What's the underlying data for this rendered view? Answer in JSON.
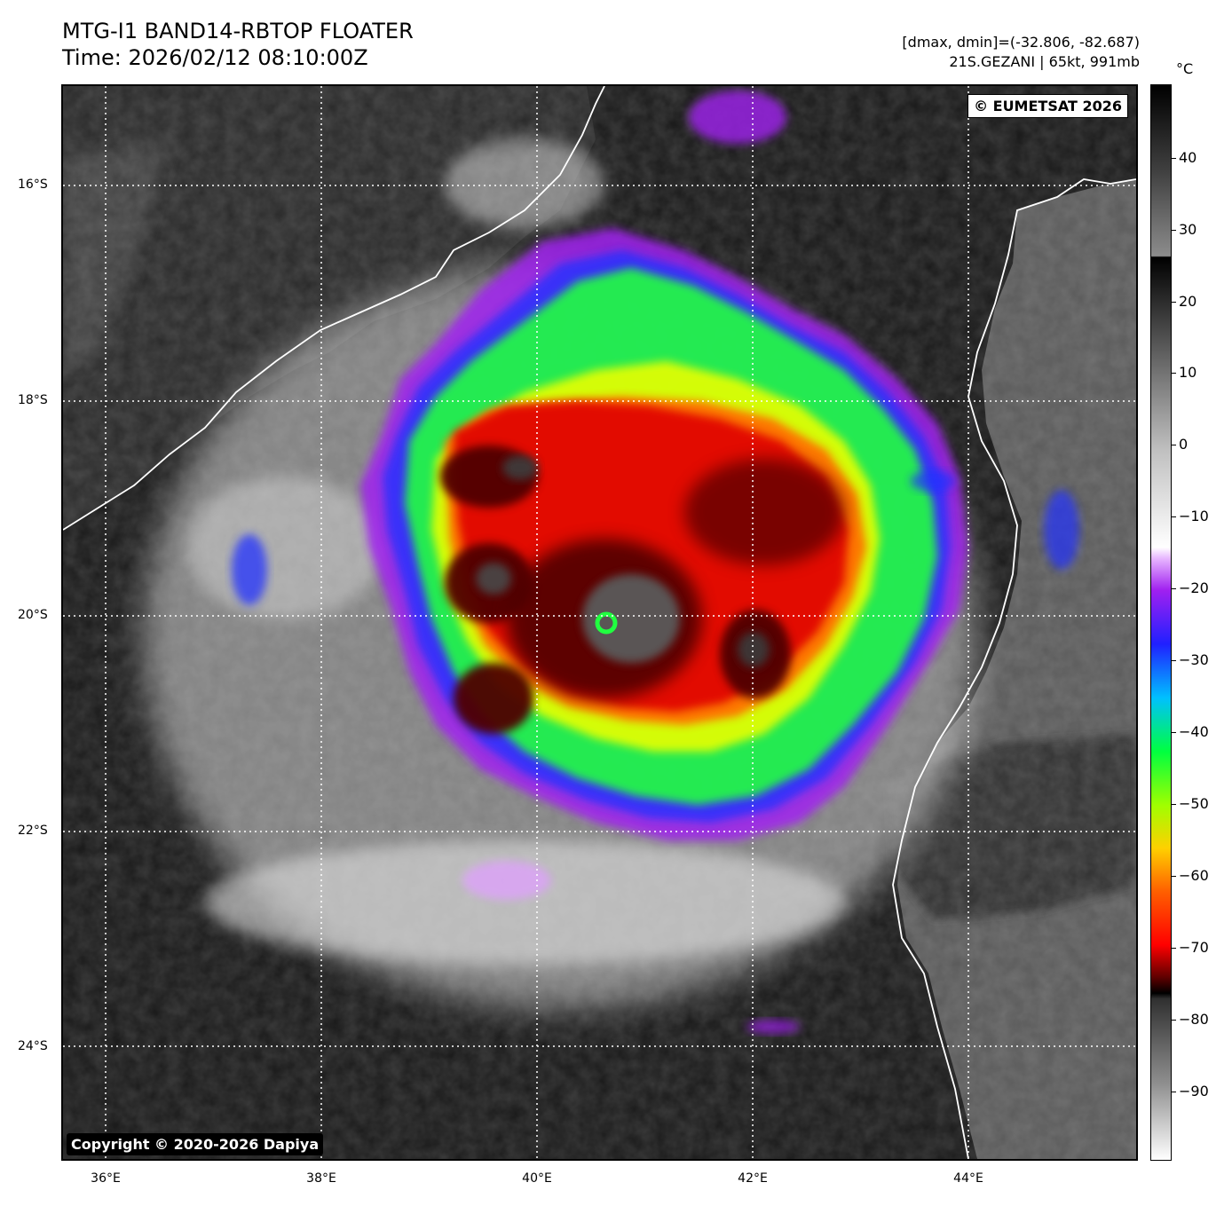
{
  "header": {
    "title": "MTG-I1 BAND14-RBTOP FLOATER",
    "time": "Time: 2026/02/12 08:10:00Z",
    "range": "[dmax, dmin]=(-32.806, -82.687)",
    "storm": "21S.GEZANI | 65kt, 991mb"
  },
  "map": {
    "watermark": "© EUMETSAT 2026",
    "copyright": "Copyright © 2020-2026 Dapiya",
    "lat_labels": [
      "16°S",
      "18°S",
      "20°S",
      "22°S",
      "24°S"
    ],
    "lon_labels": [
      "36°E",
      "38°E",
      "40°E",
      "42°E",
      "44°E"
    ],
    "storm_center": {
      "lat": -20.0,
      "lon": 40.8
    }
  },
  "colorbar": {
    "unit": "°C",
    "ticks": [
      "40",
      "30",
      "20",
      "10",
      "0",
      "−10",
      "−20",
      "−30",
      "−40",
      "−50",
      "−60",
      "−70",
      "−80",
      "−90"
    ]
  },
  "colors": {
    "ocean": "#1c1c1c",
    "land_madagascar": "#5a5a5a",
    "land_mozambique": "#2a2a2a",
    "coastline": "#ffffff",
    "cloud_white": "#e8e8e8",
    "purple": "#a020f0",
    "blue": "#2030ff",
    "green": "#20ff40",
    "yellow": "#e8ff00",
    "orange": "#ff7000",
    "red": "#e00000",
    "dark_red": "#500000",
    "eye_grey": "#5a5a5a"
  }
}
